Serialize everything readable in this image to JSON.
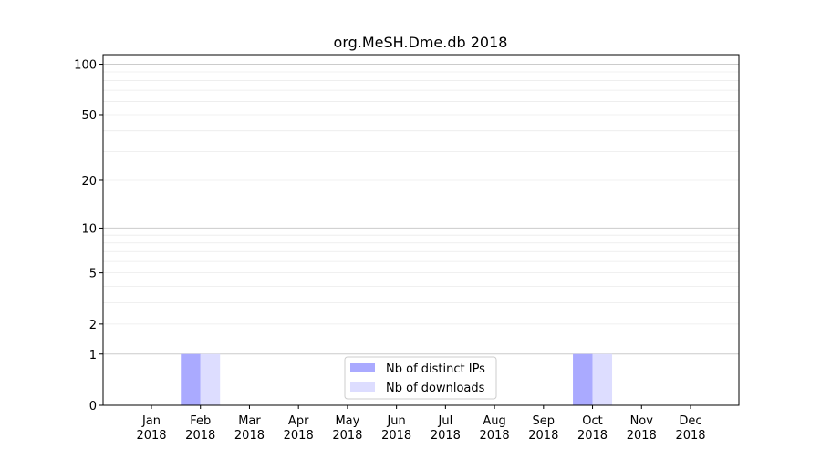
{
  "chart_data": {
    "type": "bar",
    "title": "org.MeSH.Dme.db 2018",
    "xlabel": "",
    "ylabel": "",
    "yscale": "log(1+y)",
    "ylim": [
      0,
      114
    ],
    "yticks": [
      0,
      1,
      2,
      5,
      10,
      20,
      50,
      100
    ],
    "grid": true,
    "legend_position": "lower-center",
    "categories": [
      "Jan\n2018",
      "Feb\n2018",
      "Mar\n2018",
      "Apr\n2018",
      "May\n2018",
      "Jun\n2018",
      "Jul\n2018",
      "Aug\n2018",
      "Sep\n2018",
      "Oct\n2018",
      "Nov\n2018",
      "Dec\n2018"
    ],
    "series": [
      {
        "name": "Nb of distinct IPs",
        "color": "#aaaaff",
        "values": [
          0,
          1,
          0,
          0,
          0,
          0,
          0,
          0,
          0,
          1,
          0,
          0
        ]
      },
      {
        "name": "Nb of downloads",
        "color": "#ddddff",
        "values": [
          0,
          1,
          0,
          0,
          0,
          0,
          0,
          0,
          0,
          1,
          0,
          0
        ]
      }
    ]
  }
}
